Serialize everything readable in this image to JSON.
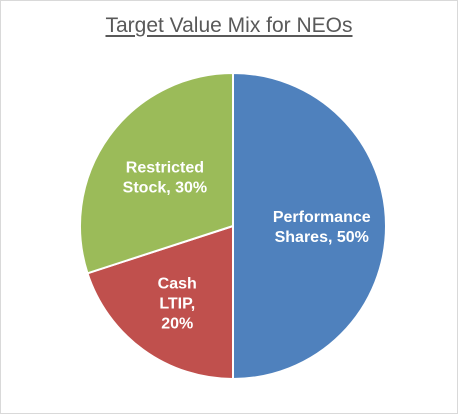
{
  "chart_data": {
    "type": "pie",
    "title": "Target Value Mix for NEOs",
    "slices": [
      {
        "name": "Performance Shares",
        "value": 50,
        "color": "#4f81bd",
        "label_lines": [
          "Performance",
          "Shares, 50%"
        ]
      },
      {
        "name": "Cash LTIP",
        "value": 20,
        "color": "#c0504d",
        "label_lines": [
          "Cash",
          "LTIP,",
          "20%"
        ]
      },
      {
        "name": "Restricted Stock",
        "value": 30,
        "color": "#9bbb59",
        "label_lines": [
          "Restricted",
          "Stock, 30%"
        ]
      }
    ],
    "start": "top",
    "direction": "clockwise",
    "legend": "none"
  }
}
